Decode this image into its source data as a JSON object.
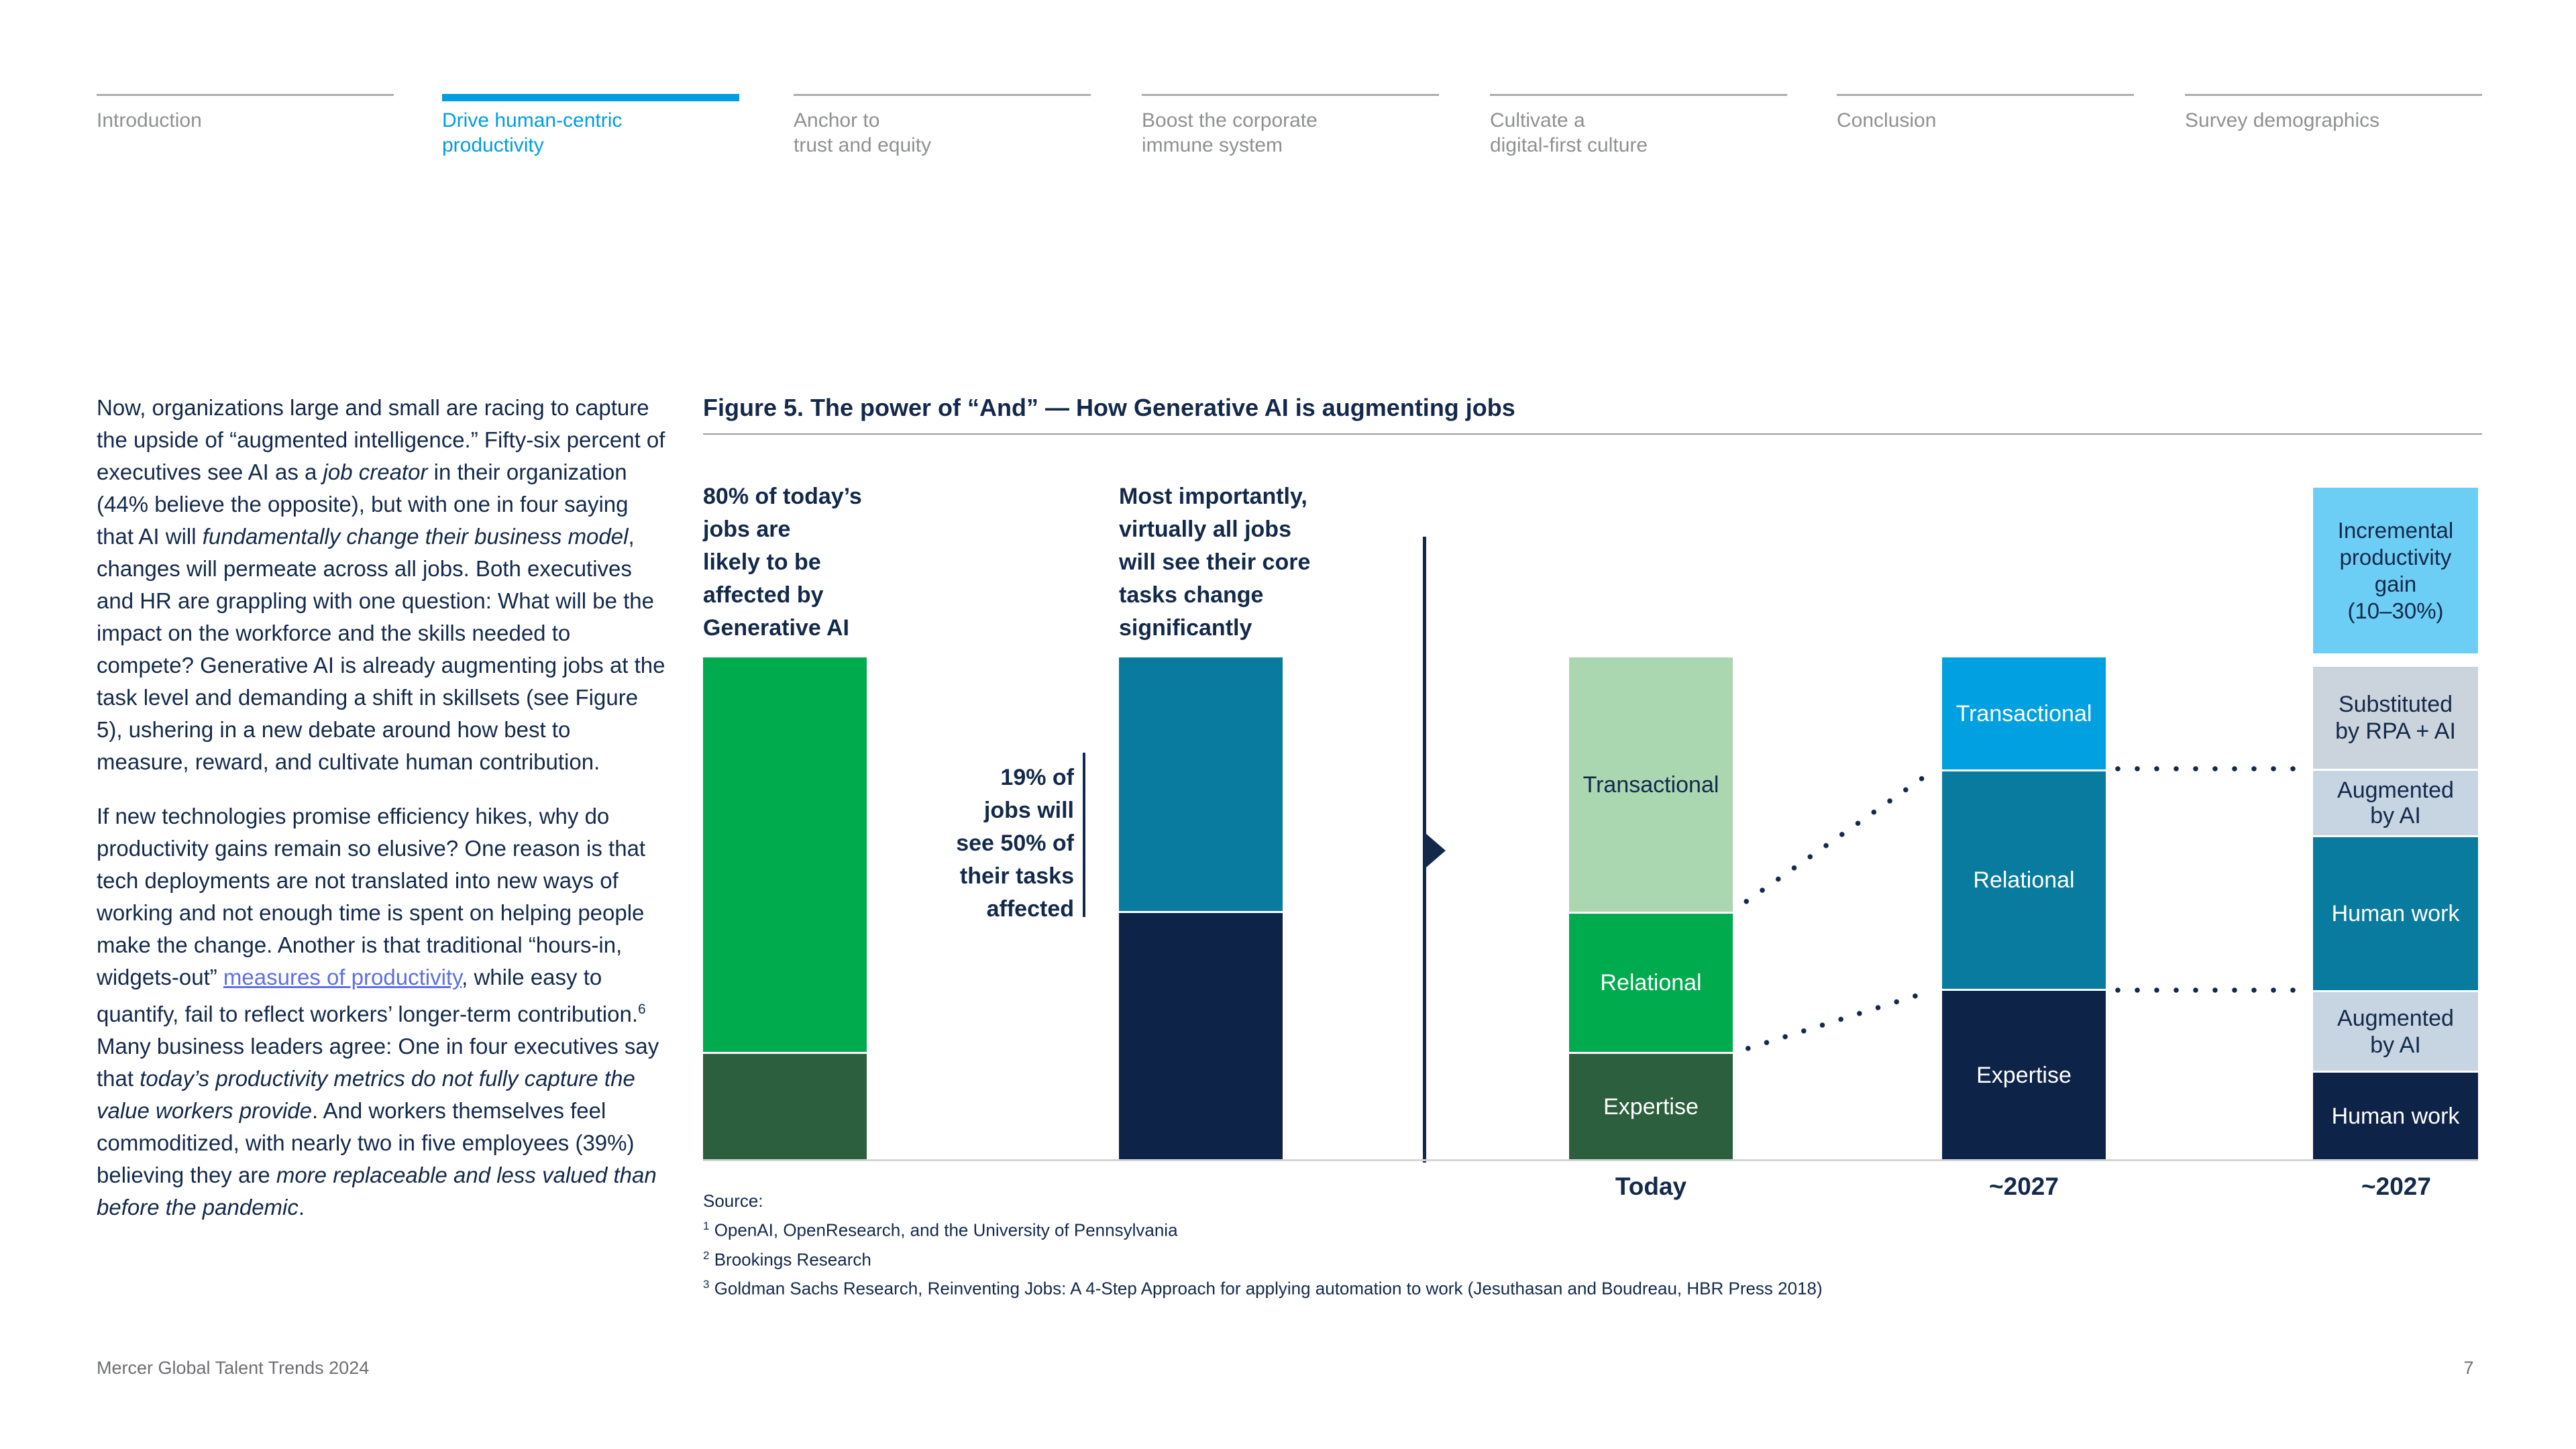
{
  "nav": {
    "items": [
      {
        "label": "Introduction",
        "active": false
      },
      {
        "label": "Drive human-centric\nproductivity",
        "active": true
      },
      {
        "label": "Anchor to\ntrust and equity",
        "active": false
      },
      {
        "label": "Boost the corporate\nimmune system",
        "active": false
      },
      {
        "label": "Cultivate a\ndigital-first culture",
        "active": false
      },
      {
        "label": "Conclusion",
        "active": false
      },
      {
        "label": "Survey demographics",
        "active": false
      }
    ],
    "accent_color": "#009DE0"
  },
  "article": {
    "paragraphs": [
      {
        "segments": [
          {
            "t": "Now, organizations large and small are racing to capture the upside of “augmented intelligence.” Fifty-six percent of executives see AI as a "
          },
          {
            "t": "job creator",
            "s": "i"
          },
          {
            "t": " in their organization (44% believe the opposite), but with one in four saying that AI will "
          },
          {
            "t": "fundamentally change their business model",
            "s": "i"
          },
          {
            "t": ", changes will permeate across all jobs. Both executives and HR are grappling with one question: What will be the impact on the workforce and the skills needed to compete? Generative AI is already augmenting jobs at the task level and demanding a shift in skillsets (see Figure 5), ushering in a new debate around how best to measure, reward, and cultivate human contribution."
          }
        ]
      },
      {
        "segments": [
          {
            "t": "If new technologies promise efficiency hikes, why do productivity gains remain so elusive? One reason is that tech deployments are not translated into new ways of working and not enough time is spent on helping people make the change. Another is that traditional “hours-in, widgets-out” "
          },
          {
            "t": "measures of productivity",
            "s": "link"
          },
          {
            "t": ", while easy to quantify, fail to reflect workers’ longer-term contribution."
          },
          {
            "t": "6",
            "s": "sup"
          },
          {
            "t": " Many business leaders agree: One in four executives say that "
          },
          {
            "t": "today’s productivity metrics do not fully capture the value workers provide",
            "s": "i"
          },
          {
            "t": ". And workers themselves feel commoditized, with nearly two in five employees (39%) believing they are "
          },
          {
            "t": "more replaceable and less valued than before the pandemic",
            "s": "i"
          },
          {
            "t": "."
          }
        ]
      }
    ]
  },
  "figure": {
    "title": "Figure 5. The power of “And” — How Generative AI is augmenting jobs",
    "annotations": {
      "left_bar": "80% of today’s\njobs are\nlikely to be\naffected by\nGenerative AI",
      "mid_bar": "Most importantly,\nvirtually all jobs\nwill see their core\ntasks change\nsignificantly",
      "share_note": "19% of\njobs will\nsee 50% of\ntheir tasks\naffected"
    }
  },
  "chart_data": {
    "type": "bar",
    "title": "Figure 5. The power of “And” — How Generative AI is augmenting jobs",
    "ylabel": "",
    "xlabel": "",
    "legend_position": "none",
    "grid": false,
    "columns": [
      {
        "id": "jobs-affected",
        "x_label": "",
        "annotation": "80% of today’s jobs are likely to be affected by Generative AI",
        "segments": [
          {
            "label": "",
            "name": "affected-by-generative-ai",
            "color": "#00AB4E",
            "height_pct": 78.6
          },
          {
            "label": "",
            "name": "not-affected",
            "color": "#2C5F3D",
            "height_pct": 21.4
          }
        ]
      },
      {
        "id": "tasks-affected",
        "x_label": "",
        "annotation": "Most importantly, virtually all jobs will see their core tasks change significantly",
        "note": "19% of jobs will see 50% of their tasks affected",
        "segments": [
          {
            "label": "",
            "name": "core-tasks-changing",
            "color": "#087B9F",
            "height_pct": 50.5
          },
          {
            "label": "",
            "name": "tasks-affected-50pct",
            "color": "#0E2348",
            "height_pct": 49.5
          }
        ]
      },
      {
        "id": "today",
        "x_label": "Today",
        "segments": [
          {
            "label": "Transactional",
            "color": "#AAD6B0",
            "height_pct": 50.7
          },
          {
            "label": "Relational",
            "color": "#00AB4E",
            "height_pct": 27.9
          },
          {
            "label": "Expertise",
            "color": "#2C5F3D",
            "height_pct": 21.4
          }
        ]
      },
      {
        "id": "2027-mix",
        "x_label": "~2027",
        "segments": [
          {
            "label": "Transactional",
            "color": "#00A0E1",
            "height_pct": 22.3
          },
          {
            "label": "Relational",
            "color": "#087B9F",
            "height_pct": 43.7
          },
          {
            "label": "Expertise",
            "color": "#0E2348",
            "height_pct": 34.0
          }
        ]
      },
      {
        "id": "2027-outcome",
        "x_label": "~2027",
        "segments": [
          {
            "label": "Incremental\nproductivity\ngain\n(10–30%)",
            "color": "#6DCEF5",
            "height_pct": 33.0,
            "detached_above": true
          },
          {
            "label": "Substituted\nby RPA + AI",
            "color": "#CBD3DC",
            "height_pct": 20.7
          },
          {
            "label": "Augmented\nby AI",
            "color": "#C7D4E2",
            "height_pct": 13.2
          },
          {
            "label": "Human work",
            "color": "#087B9F",
            "height_pct": 30.9
          },
          {
            "label": "Augmented\nby AI",
            "color": "#C7D4E2",
            "height_pct": 16.0
          },
          {
            "label": "Human work",
            "color": "#0E2348",
            "height_pct": 17.6
          }
        ]
      }
    ]
  },
  "source": {
    "label": "Source:",
    "notes": [
      {
        "sup": "1",
        "text": "OpenAI, OpenResearch, and the University of Pennsylvania"
      },
      {
        "sup": "2",
        "text": "Brookings Research"
      },
      {
        "sup": "3",
        "text": "Goldman Sachs Research, Reinventing Jobs: A 4-Step Approach for applying automation to work (Jesuthasan and Boudreau, HBR Press 2018)"
      }
    ]
  },
  "footer": {
    "left": "Mercer Global Talent Trends 2024",
    "page": "7"
  }
}
